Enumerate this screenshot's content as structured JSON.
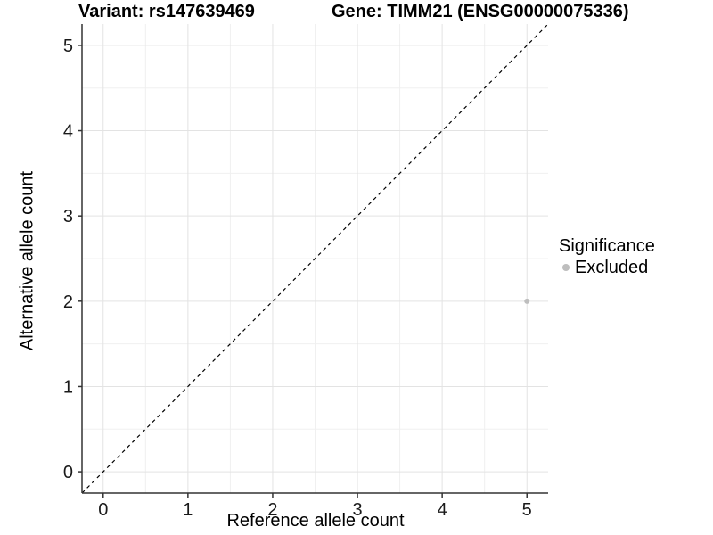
{
  "titles": {
    "left": "Variant: rs147639469",
    "right": "Gene: TIMM21 (ENSG00000075336)"
  },
  "axes": {
    "x_title": "Reference allele count",
    "y_title": "Alternative allele count"
  },
  "legend": {
    "title": "Significance",
    "items": [
      {
        "label": "Excluded",
        "color": "#bebebe"
      }
    ]
  },
  "colors": {
    "background": "#ffffff",
    "grid_major": "#e3e3e3",
    "grid_minor": "#f0f0f0",
    "axis_line": "#333333",
    "tick_mark": "#333333",
    "tick_label": "#1a1a1a",
    "reference_line": "#000000",
    "excluded_point": "#bebebe"
  },
  "chart_data": {
    "type": "scatter",
    "title": "Variant: rs147639469 / Gene: TIMM21 (ENSG00000075336)",
    "xlabel": "Reference allele count",
    "ylabel": "Alternative allele count",
    "xlim": [
      -0.25,
      5.25
    ],
    "ylim": [
      -0.25,
      5.25
    ],
    "x_ticks": [
      0,
      1,
      2,
      3,
      4,
      5
    ],
    "y_ticks": [
      0,
      1,
      2,
      3,
      4,
      5
    ],
    "x_minor_ticks": [
      0.5,
      1.5,
      2.5,
      3.5,
      4.5
    ],
    "y_minor_ticks": [
      0.5,
      1.5,
      2.5,
      3.5,
      4.5
    ],
    "grid": true,
    "legend_position": "right",
    "reference_line": {
      "type": "abline",
      "slope": 1,
      "intercept": 0,
      "style": "dashed"
    },
    "series": [
      {
        "name": "Excluded",
        "color": "#bebebe",
        "points": [
          {
            "x": 5,
            "y": 2
          }
        ]
      }
    ]
  }
}
